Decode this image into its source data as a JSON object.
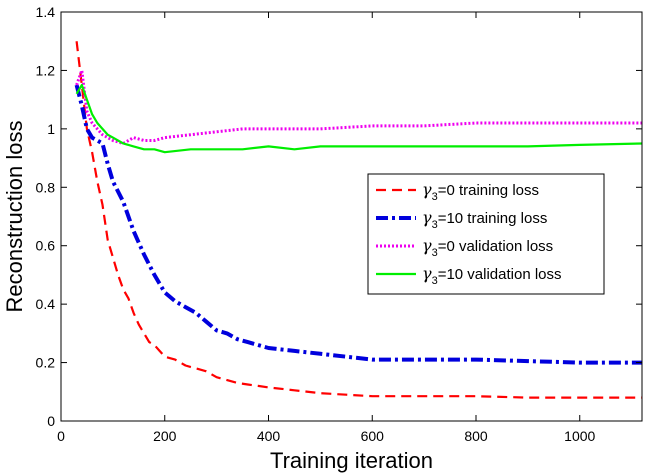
{
  "chart_data": {
    "type": "line",
    "xlabel": "Training iteration",
    "ylabel": "Reconstruction loss",
    "xlim": [
      0,
      1120
    ],
    "ylim": [
      0,
      1.4
    ],
    "xticks": [
      0,
      200,
      400,
      600,
      800,
      1000
    ],
    "yticks": [
      0,
      0.2,
      0.4,
      0.6,
      0.8,
      1,
      1.2,
      1.4
    ],
    "x_tick_labels": [
      "0",
      "200",
      "400",
      "600",
      "800",
      "1000"
    ],
    "y_tick_labels": [
      "0",
      "0.2",
      "0.4",
      "0.6",
      "0.8",
      "1",
      "1.2",
      "1.4"
    ],
    "grid": false,
    "legend_position": "right-middle",
    "series": [
      {
        "name": "γ3=0   training loss",
        "legend_symbol": "γ",
        "legend_sub": "3",
        "legend_rest": "=0   training loss",
        "color": "#ff0000",
        "style": "dashed",
        "x": [
          30,
          40,
          50,
          60,
          70,
          80,
          90,
          100,
          110,
          120,
          130,
          140,
          150,
          160,
          170,
          180,
          190,
          200,
          220,
          240,
          260,
          280,
          300,
          320,
          340,
          360,
          380,
          400,
          450,
          500,
          550,
          600,
          650,
          700,
          800,
          900,
          1000,
          1120
        ],
        "y": [
          1.3,
          1.15,
          1.0,
          0.92,
          0.82,
          0.74,
          0.62,
          0.56,
          0.5,
          0.45,
          0.42,
          0.37,
          0.33,
          0.3,
          0.27,
          0.26,
          0.24,
          0.22,
          0.21,
          0.19,
          0.18,
          0.17,
          0.15,
          0.14,
          0.13,
          0.125,
          0.12,
          0.115,
          0.105,
          0.095,
          0.09,
          0.085,
          0.085,
          0.085,
          0.085,
          0.08,
          0.08,
          0.08
        ]
      },
      {
        "name": "γ3=10 training loss",
        "legend_symbol": "γ",
        "legend_sub": "3",
        "legend_rest": "=10 training loss",
        "color": "#0000dd",
        "style": "dashdot",
        "x": [
          30,
          40,
          50,
          60,
          70,
          80,
          90,
          100,
          120,
          140,
          160,
          180,
          200,
          220,
          240,
          260,
          280,
          300,
          320,
          340,
          360,
          400,
          450,
          500,
          550,
          600,
          700,
          800,
          900,
          1000,
          1120
        ],
        "y": [
          1.15,
          1.08,
          1.0,
          0.97,
          0.96,
          0.95,
          0.88,
          0.82,
          0.75,
          0.65,
          0.57,
          0.5,
          0.44,
          0.41,
          0.39,
          0.37,
          0.34,
          0.31,
          0.3,
          0.28,
          0.27,
          0.25,
          0.24,
          0.23,
          0.22,
          0.21,
          0.21,
          0.21,
          0.205,
          0.2,
          0.2
        ]
      },
      {
        "name": "γ3=0   validation loss",
        "legend_symbol": "γ",
        "legend_sub": "3",
        "legend_rest": "=0   validation loss",
        "color": "#ee00ee",
        "style": "dotted",
        "x": [
          30,
          40,
          50,
          60,
          70,
          80,
          100,
          120,
          140,
          160,
          180,
          200,
          250,
          300,
          350,
          400,
          450,
          500,
          600,
          700,
          800,
          900,
          1000,
          1120
        ],
        "y": [
          1.15,
          1.2,
          1.06,
          1.02,
          1.0,
          0.98,
          0.96,
          0.95,
          0.97,
          0.96,
          0.96,
          0.97,
          0.98,
          0.99,
          1.0,
          1.0,
          1.0,
          1.0,
          1.01,
          1.01,
          1.02,
          1.02,
          1.02,
          1.02
        ]
      },
      {
        "name": "γ3=10 validation loss",
        "legend_symbol": "γ",
        "legend_sub": "3",
        "legend_rest": "=10 validation loss",
        "color": "#00ee00",
        "style": "solid",
        "x": [
          30,
          40,
          50,
          60,
          70,
          80,
          90,
          100,
          120,
          140,
          160,
          180,
          200,
          250,
          300,
          350,
          400,
          450,
          500,
          600,
          700,
          800,
          900,
          1000,
          1120
        ],
        "y": [
          1.12,
          1.15,
          1.1,
          1.05,
          1.02,
          1.0,
          0.98,
          0.97,
          0.95,
          0.94,
          0.93,
          0.93,
          0.92,
          0.93,
          0.93,
          0.93,
          0.94,
          0.93,
          0.94,
          0.94,
          0.94,
          0.94,
          0.94,
          0.945,
          0.95
        ]
      }
    ]
  }
}
